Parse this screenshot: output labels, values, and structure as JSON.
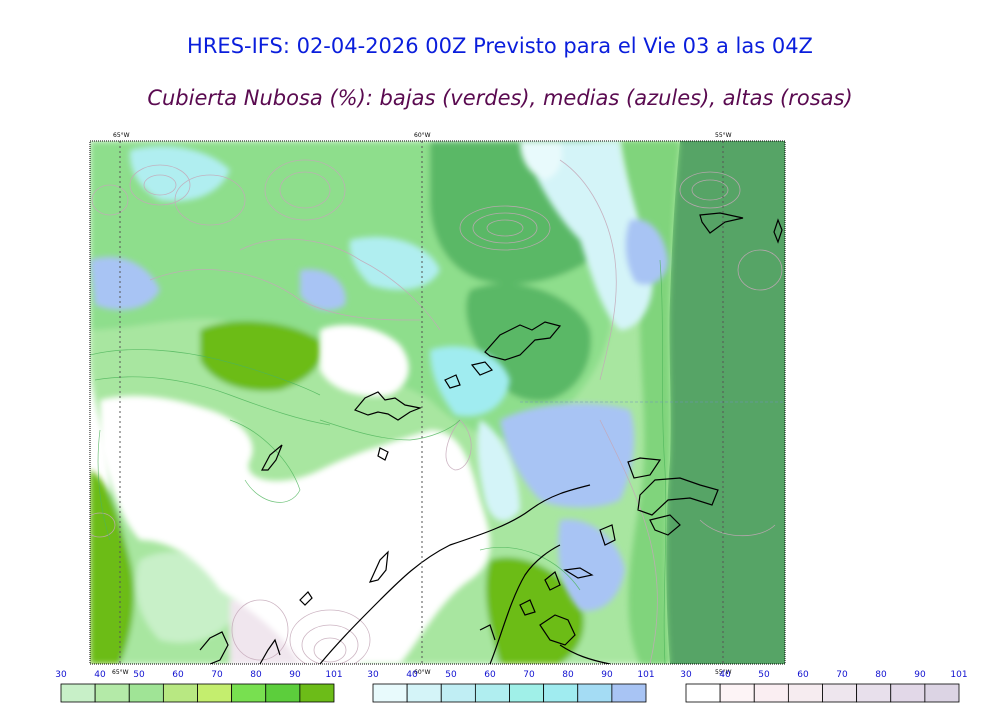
{
  "title": "HRES-IFS: 02-04-2026 00Z Previsto para el Vie 03 a las 04Z",
  "subtitle": "Cubierta Nubosa (%): bajas (verdes), medias (azules), altas (rosas)",
  "map": {
    "longitude_labels": [
      "65°W",
      "60°W",
      "55°W"
    ],
    "bottom_longitude_labels": [
      "65°W",
      "60°W",
      "55°W"
    ]
  },
  "colorbars": [
    {
      "name": "low-clouds",
      "ticks": [
        "30",
        "40",
        "50",
        "60",
        "70",
        "80",
        "90",
        "101"
      ],
      "colors": [
        "#c8f0c8",
        "#b4eaa8",
        "#a0e496",
        "#b8e882",
        "#c4ee6e",
        "#78e050",
        "#5cce3c",
        "#6cbc18"
      ]
    },
    {
      "name": "mid-clouds",
      "ticks": [
        "30",
        "40",
        "50",
        "60",
        "70",
        "80",
        "90",
        "101"
      ],
      "colors": [
        "#e8fafc",
        "#d4f4f8",
        "#c0eef4",
        "#b0eef0",
        "#a0f0e8",
        "#a0ecf0",
        "#a4dcf4",
        "#a8c4f4"
      ]
    },
    {
      "name": "high-clouds",
      "ticks": [
        "30",
        "40",
        "50",
        "60",
        "70",
        "80",
        "90",
        "101"
      ],
      "colors": [
        "#ffffff",
        "#fdf4f6",
        "#faeef2",
        "#f6ecf0",
        "#eee6ee",
        "#e8e0ec",
        "#e2d8e8",
        "#dcd4e4"
      ]
    }
  ]
}
